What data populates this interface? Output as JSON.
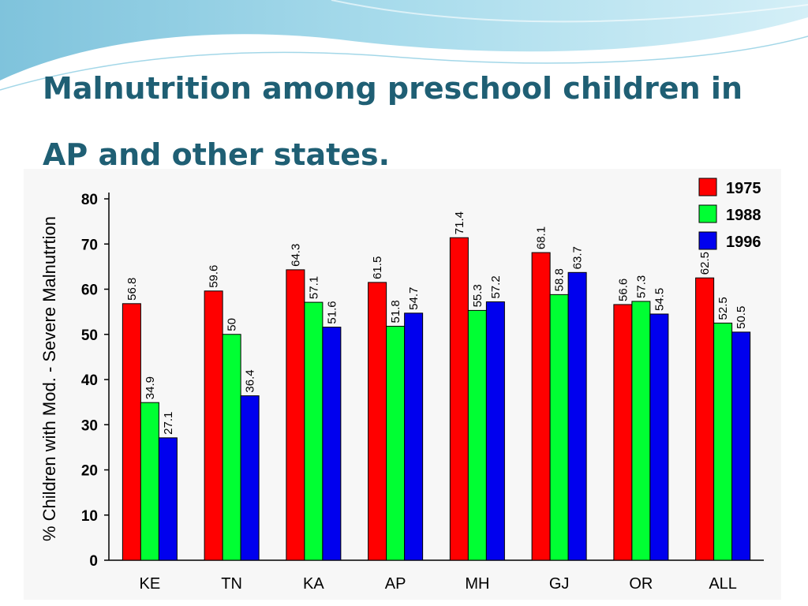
{
  "slide": {
    "title_line1": "Malnutrition among preschool children in",
    "title_line2": "AP and other states",
    "title_period": ".",
    "accent_color": "#1f5f74"
  },
  "chart_data": {
    "type": "bar",
    "ylabel": "% Children with Mod. - Severe Malnutrtion",
    "xlabel": "",
    "ylim": [
      0,
      80
    ],
    "yticks": [
      0,
      10,
      20,
      30,
      40,
      50,
      60,
      70,
      80
    ],
    "categories": [
      "KE",
      "TN",
      "KA",
      "AP",
      "MH",
      "GJ",
      "OR",
      "ALL"
    ],
    "series": [
      {
        "name": "1975",
        "color": "#ff0000",
        "values": [
          56.8,
          59.6,
          64.3,
          61.5,
          71.4,
          68.1,
          56.6,
          62.5
        ]
      },
      {
        "name": "1988",
        "color": "#00ff33",
        "values": [
          34.9,
          50,
          57.1,
          51.8,
          55.3,
          58.8,
          57.3,
          52.5
        ]
      },
      {
        "name": "1996",
        "color": "#0000ee",
        "values": [
          27.1,
          36.4,
          51.6,
          54.7,
          57.2,
          63.7,
          54.5,
          50.5
        ]
      }
    ],
    "legend_position": "top-right",
    "grid": false
  }
}
